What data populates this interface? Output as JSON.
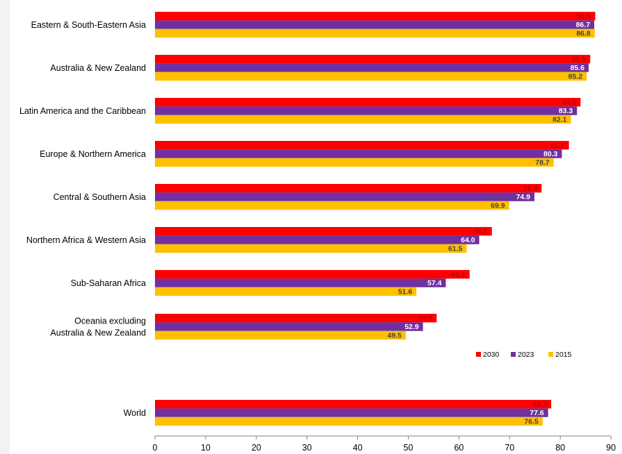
{
  "chart_data": {
    "type": "bar",
    "orientation": "horizontal",
    "categories": [
      [
        "Eastern & South-Eastern Asia"
      ],
      [
        "Australia & New Zealand"
      ],
      [
        "Latin America and the Caribbean"
      ],
      [
        "Europe & Northern America"
      ],
      [
        "Central & Southern Asia"
      ],
      [
        "Northern Africa & Western Asia"
      ],
      [
        "Sub-Saharan Africa"
      ],
      [
        "Oceania excluding",
        "Australia & New Zealand"
      ],
      [
        "World"
      ]
    ],
    "series": [
      {
        "name": "2030",
        "color": "#ff0000",
        "label_color": "#c00000",
        "values": [
          86.9,
          85.9,
          84.0,
          81.7,
          76.3,
          66.5,
          62.1,
          55.6,
          78.2
        ]
      },
      {
        "name": "2023",
        "color": "#7030a0",
        "label_color": "#ffffff",
        "values": [
          86.7,
          85.6,
          83.3,
          80.3,
          74.9,
          64.0,
          57.4,
          52.9,
          77.6
        ]
      },
      {
        "name": "2015",
        "color": "#ffc000",
        "label_color": "#404040",
        "values": [
          86.8,
          85.2,
          82.1,
          78.7,
          69.9,
          61.5,
          51.6,
          49.5,
          76.5
        ]
      }
    ],
    "xlim": [
      0,
      90
    ],
    "x_ticks": [
      "0",
      "10",
      "20",
      "30",
      "40",
      "50",
      "60",
      "70",
      "80",
      "90"
    ],
    "legend_position": "lower-right",
    "grid": false
  }
}
